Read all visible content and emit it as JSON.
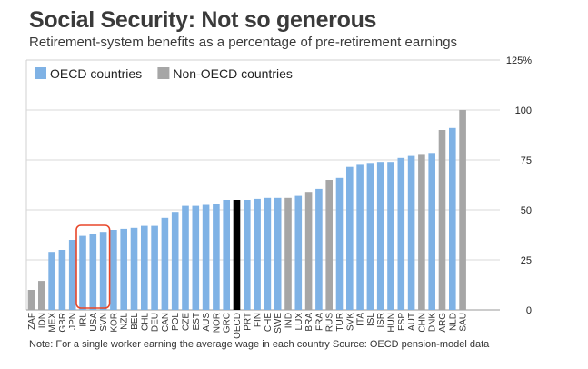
{
  "title": "Social Security: Not so generous",
  "subtitle": "Retirement-system benefits as a percentage of pre-retirement earnings",
  "note": "Note: For a single worker earning the average wage in each country  Source: OECD pension-model data",
  "colors": {
    "oecd": "#7fb2e5",
    "non_oecd": "#a6a6a6",
    "oecd_average": "#000000",
    "highlight": "#e8472a"
  },
  "legend": [
    {
      "label": "OECD countries",
      "color": "#7fb2e5"
    },
    {
      "label": "Non-OECD countries",
      "color": "#a6a6a6"
    }
  ],
  "chart_data": {
    "type": "bar",
    "ylim": [
      0,
      125
    ],
    "yticks": [
      0,
      25,
      50,
      75,
      100,
      "125%"
    ],
    "grid": true,
    "legend_position": "top-left",
    "highlighted_categories": [
      "IRL",
      "USA",
      "SVN"
    ],
    "categories": [
      "ZAF",
      "IDN",
      "MEX",
      "GBR",
      "JPN",
      "IRL",
      "USA",
      "SVN",
      "KOR",
      "NZL",
      "BEL",
      "CHL",
      "DEU",
      "CAN",
      "POL",
      "CZE",
      "EST",
      "AUS",
      "NOR",
      "GRC",
      "OECD",
      "PRT",
      "FIN",
      "CHE",
      "SWE",
      "IND",
      "LUX",
      "BRA",
      "FRA",
      "RUS",
      "TUR",
      "SVK",
      "ITA",
      "ISL",
      "ISR",
      "HUN",
      "ESP",
      "AUT",
      "CHN",
      "DNK",
      "ARG",
      "NLD",
      "SAU"
    ],
    "values": [
      10,
      14.5,
      29,
      30,
      35,
      37,
      38,
      39,
      40,
      40.5,
      41,
      42,
      42,
      46,
      49,
      52,
      52,
      52.5,
      53,
      55,
      55,
      55,
      55.5,
      56,
      56,
      56,
      57,
      59,
      60.5,
      65,
      66,
      71.5,
      73,
      73.5,
      74,
      74,
      76,
      77,
      78,
      78.5,
      90,
      91,
      100
    ],
    "groups": [
      "non_oecd",
      "non_oecd",
      "oecd",
      "oecd",
      "oecd",
      "oecd",
      "oecd",
      "oecd",
      "oecd",
      "oecd",
      "oecd",
      "oecd",
      "oecd",
      "oecd",
      "oecd",
      "oecd",
      "oecd",
      "oecd",
      "oecd",
      "oecd",
      "oecd_average",
      "oecd",
      "oecd",
      "oecd",
      "oecd",
      "non_oecd",
      "oecd",
      "non_oecd",
      "oecd",
      "non_oecd",
      "oecd",
      "oecd",
      "oecd",
      "oecd",
      "oecd",
      "oecd",
      "oecd",
      "oecd",
      "non_oecd",
      "oecd",
      "non_oecd",
      "oecd",
      "non_oecd"
    ]
  }
}
